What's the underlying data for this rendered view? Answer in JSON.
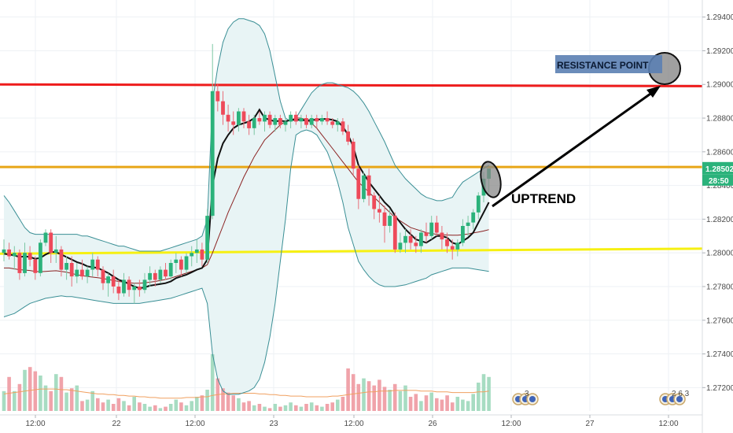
{
  "chart_data": {
    "type": "candlestick",
    "y_axis": {
      "ticks": [
        "1.29400",
        "1.29200",
        "1.29000",
        "1.28800",
        "1.28600",
        "1.28400",
        "1.28200",
        "1.28000",
        "1.27800",
        "1.27600",
        "1.27400",
        "1.27200"
      ],
      "range": [
        1.2708,
        1.2952
      ],
      "position": "right"
    },
    "x_axis": {
      "ticks": [
        "12:00",
        "22",
        "12:00",
        "23",
        "12:00",
        "26",
        "12:00",
        "27",
        "12:00"
      ]
    },
    "current_price": "1.28502",
    "countdown": "28:50",
    "horizontal_lines": [
      {
        "name": "resistance",
        "color": "#ee1c1c",
        "y": [
          1.29,
          1.2899
        ]
      },
      {
        "name": "current-level",
        "color": "#e8a617",
        "y": [
          1.2851,
          1.2851
        ]
      },
      {
        "name": "support",
        "color": "#f6f012",
        "y": [
          1.27995,
          1.28025
        ]
      }
    ],
    "annotations": {
      "resistance_label": "RESISTANCE POINT",
      "uptrend_label": "UPTREND"
    },
    "colors": {
      "up": "#7cc7a4",
      "down": "#e8707b",
      "band": "#3a8f95",
      "band_fill": "#e8f4f5",
      "sma": "#111111",
      "ma_slow": "#8b2323",
      "volume_ma": "#f0a060",
      "volume_up": "#a7dcc2",
      "volume_down": "#f0a3aa"
    },
    "candles": [
      [
        1.28,
        1.2808,
        1.2795,
        1.2802
      ],
      [
        1.2802,
        1.2806,
        1.2796,
        1.2798
      ],
      [
        1.2798,
        1.2804,
        1.279,
        1.28
      ],
      [
        1.28,
        1.2802,
        1.2784,
        1.2788
      ],
      [
        1.2788,
        1.2806,
        1.2786,
        1.28
      ],
      [
        1.28,
        1.2804,
        1.2792,
        1.2796
      ],
      [
        1.2796,
        1.2798,
        1.2784,
        1.2788
      ],
      [
        1.2788,
        1.2808,
        1.2786,
        1.2806
      ],
      [
        1.2806,
        1.2814,
        1.2804,
        1.2812
      ],
      [
        1.2812,
        1.2814,
        1.2794,
        1.28
      ],
      [
        1.28,
        1.281,
        1.2794,
        1.2802
      ],
      [
        1.2802,
        1.2804,
        1.2786,
        1.279
      ],
      [
        1.279,
        1.2798,
        1.2784,
        1.2794
      ],
      [
        1.2794,
        1.2798,
        1.278,
        1.2786
      ],
      [
        1.2786,
        1.2794,
        1.2782,
        1.279
      ],
      [
        1.279,
        1.2796,
        1.2784,
        1.2786
      ],
      [
        1.2786,
        1.2792,
        1.2782,
        1.279
      ],
      [
        1.279,
        1.28,
        1.2786,
        1.2796
      ],
      [
        1.2796,
        1.2798,
        1.2786,
        1.279
      ],
      [
        1.279,
        1.2792,
        1.2778,
        1.2782
      ],
      [
        1.2782,
        1.2788,
        1.2774,
        1.2786
      ],
      [
        1.2786,
        1.279,
        1.2776,
        1.278
      ],
      [
        1.278,
        1.2784,
        1.2772,
        1.2776
      ],
      [
        1.2776,
        1.2788,
        1.2774,
        1.2784
      ],
      [
        1.2784,
        1.2786,
        1.2774,
        1.2778
      ],
      [
        1.2778,
        1.2782,
        1.277,
        1.278
      ],
      [
        1.278,
        1.2784,
        1.2774,
        1.2778
      ],
      [
        1.2778,
        1.2788,
        1.2776,
        1.2784
      ],
      [
        1.2784,
        1.2792,
        1.278,
        1.2788
      ],
      [
        1.2788,
        1.279,
        1.278,
        1.2784
      ],
      [
        1.2784,
        1.2792,
        1.2782,
        1.279
      ],
      [
        1.279,
        1.2794,
        1.2784,
        1.2786
      ],
      [
        1.2786,
        1.2796,
        1.2784,
        1.2794
      ],
      [
        1.2794,
        1.28,
        1.2788,
        1.2796
      ],
      [
        1.2796,
        1.2798,
        1.2786,
        1.279
      ],
      [
        1.279,
        1.28,
        1.2788,
        1.2798
      ],
      [
        1.2798,
        1.2804,
        1.2792,
        1.28
      ],
      [
        1.28,
        1.2808,
        1.2794,
        1.2802
      ],
      [
        1.2802,
        1.2806,
        1.2792,
        1.2796
      ],
      [
        1.2796,
        1.2826,
        1.2794,
        1.2822
      ],
      [
        1.2822,
        1.2924,
        1.282,
        1.2896
      ],
      [
        1.2896,
        1.29,
        1.2884,
        1.289
      ],
      [
        1.289,
        1.2896,
        1.2876,
        1.2882
      ],
      [
        1.2882,
        1.2888,
        1.2872,
        1.2878
      ],
      [
        1.2878,
        1.2884,
        1.287,
        1.2876
      ],
      [
        1.2876,
        1.2886,
        1.2872,
        1.2884
      ],
      [
        1.2884,
        1.2886,
        1.2874,
        1.2878
      ],
      [
        1.2878,
        1.2882,
        1.287,
        1.2874
      ],
      [
        1.2874,
        1.2882,
        1.287,
        1.288
      ],
      [
        1.288,
        1.2884,
        1.2876,
        1.2878
      ],
      [
        1.2878,
        1.2884,
        1.2872,
        1.2882
      ],
      [
        1.2882,
        1.2884,
        1.2874,
        1.2876
      ],
      [
        1.2876,
        1.2882,
        1.2872,
        1.288
      ],
      [
        1.288,
        1.2882,
        1.2874,
        1.2876
      ],
      [
        1.2876,
        1.288,
        1.2872,
        1.2878
      ],
      [
        1.2878,
        1.2884,
        1.2874,
        1.2882
      ],
      [
        1.2882,
        1.2884,
        1.2876,
        1.2878
      ],
      [
        1.2878,
        1.2882,
        1.2874,
        1.288
      ],
      [
        1.288,
        1.2882,
        1.2874,
        1.2876
      ],
      [
        1.2876,
        1.2882,
        1.2874,
        1.288
      ],
      [
        1.288,
        1.2882,
        1.2874,
        1.2878
      ],
      [
        1.2878,
        1.2882,
        1.2876,
        1.288
      ],
      [
        1.288,
        1.2884,
        1.2876,
        1.2878
      ],
      [
        1.2878,
        1.288,
        1.2874,
        1.2876
      ],
      [
        1.2876,
        1.288,
        1.2872,
        1.2878
      ],
      [
        1.2878,
        1.288,
        1.287,
        1.2872
      ],
      [
        1.2872,
        1.2876,
        1.2864,
        1.2866
      ],
      [
        1.2866,
        1.2868,
        1.2846,
        1.285
      ],
      [
        1.285,
        1.2852,
        1.2826,
        1.2832
      ],
      [
        1.2832,
        1.2848,
        1.283,
        1.2846
      ],
      [
        1.2846,
        1.285,
        1.2828,
        1.2834
      ],
      [
        1.2834,
        1.2836,
        1.282,
        1.2826
      ],
      [
        1.2826,
        1.2834,
        1.2818,
        1.2824
      ],
      [
        1.2824,
        1.2828,
        1.2806,
        1.2816
      ],
      [
        1.2816,
        1.2826,
        1.2812,
        1.2822
      ],
      [
        1.2822,
        1.2824,
        1.28,
        1.2802
      ],
      [
        1.2802,
        1.2812,
        1.28,
        1.2806
      ],
      [
        1.2806,
        1.2814,
        1.28,
        1.281
      ],
      [
        1.281,
        1.2814,
        1.2802,
        1.2806
      ],
      [
        1.2806,
        1.281,
        1.28,
        1.2804
      ],
      [
        1.2804,
        1.2814,
        1.28,
        1.2812
      ],
      [
        1.2812,
        1.2818,
        1.2806,
        1.281
      ],
      [
        1.281,
        1.2822,
        1.2808,
        1.2818
      ],
      [
        1.2818,
        1.2822,
        1.281,
        1.2812
      ],
      [
        1.2812,
        1.2816,
        1.2802,
        1.2808
      ],
      [
        1.2808,
        1.2812,
        1.28,
        1.2804
      ],
      [
        1.2804,
        1.2808,
        1.2796,
        1.2802
      ],
      [
        1.2802,
        1.2808,
        1.2798,
        1.2806
      ],
      [
        1.2806,
        1.282,
        1.2804,
        1.2816
      ],
      [
        1.2816,
        1.2822,
        1.281,
        1.2818
      ],
      [
        1.2818,
        1.2826,
        1.2814,
        1.2824
      ],
      [
        1.2824,
        1.2836,
        1.282,
        1.2834
      ],
      [
        1.2834,
        1.2848,
        1.283,
        1.2844
      ],
      [
        1.2844,
        1.285,
        1.2836,
        1.285
      ]
    ],
    "sma": [
      1.27995,
      1.2799,
      1.27985,
      1.27975,
      1.2798,
      1.27975,
      1.27965,
      1.2797,
      1.2799,
      1.28005,
      1.28005,
      1.2799,
      1.27975,
      1.2796,
      1.27945,
      1.27935,
      1.2792,
      1.27915,
      1.2791,
      1.27895,
      1.2788,
      1.2786,
      1.2784,
      1.2783,
      1.27815,
      1.278,
      1.2779,
      1.27795,
      1.27805,
      1.2781,
      1.27815,
      1.2782,
      1.2783,
      1.2785,
      1.2786,
      1.2787,
      1.27885,
      1.279,
      1.2791,
      1.2796,
      1.284,
      1.2856,
      1.2865,
      1.287,
      1.2874,
      1.2876,
      1.2877,
      1.2878,
      1.288,
      1.2885,
      1.288,
      1.2879,
      1.2878,
      1.28785,
      1.2878,
      1.2879,
      1.2879,
      1.2879,
      1.28785,
      1.2879,
      1.2879,
      1.28795,
      1.28795,
      1.2879,
      1.2878,
      1.2875,
      1.287,
      1.2863,
      1.2852,
      1.2847,
      1.2842,
      1.2838,
      1.2834,
      1.283,
      1.2827,
      1.2822,
      1.2818,
      1.2814,
      1.2811,
      1.2808,
      1.2807,
      1.2806,
      1.2808,
      1.281,
      1.281,
      1.2809,
      1.2806,
      1.2805,
      1.2807,
      1.2809,
      1.2812,
      1.2818,
      1.2824,
      1.283
    ],
    "ma_slow": [
      1.2791,
      1.2791,
      1.27905,
      1.279,
      1.27898,
      1.27895,
      1.2789,
      1.27888,
      1.2789,
      1.27892,
      1.27894,
      1.2789,
      1.27885,
      1.27878,
      1.2787,
      1.27865,
      1.2786,
      1.27856,
      1.27852,
      1.27848,
      1.27842,
      1.27836,
      1.2783,
      1.27826,
      1.27822,
      1.2782,
      1.2782,
      1.27822,
      1.27826,
      1.2783,
      1.27836,
      1.27842,
      1.2785,
      1.2786,
      1.2787,
      1.2788,
      1.2789,
      1.279,
      1.2791,
      1.2793,
      1.28,
      1.2808,
      1.2816,
      1.2824,
      1.2831,
      1.2838,
      1.2845,
      1.2851,
      1.2857,
      1.2862,
      1.2867,
      1.287,
      1.2873,
      1.2876,
      1.2878,
      1.2879,
      1.288,
      1.288,
      1.2879,
      1.2877,
      1.2874,
      1.287,
      1.2866,
      1.2862,
      1.2858,
      1.2854,
      1.285,
      1.2846,
      1.2842,
      1.2839,
      1.2836,
      1.2833,
      1.283,
      1.2827,
      1.2824,
      1.2821,
      1.2819,
      1.2817,
      1.2815,
      1.2814,
      1.2813,
      1.2812,
      1.28115,
      1.2811,
      1.28108,
      1.28106,
      1.28105,
      1.28105,
      1.28108,
      1.28112,
      1.28118,
      1.28124,
      1.2813,
      1.28138
    ],
    "bb_upper": [
      1.2834,
      1.283,
      1.2825,
      1.282,
      1.2815,
      1.2812,
      1.2811,
      1.2811,
      1.2811,
      1.2811,
      1.2811,
      1.2811,
      1.2811,
      1.2811,
      1.2811,
      1.281,
      1.281,
      1.2809,
      1.2808,
      1.2807,
      1.2806,
      1.2805,
      1.2804,
      1.2804,
      1.2803,
      1.2802,
      1.2801,
      1.2801,
      1.2801,
      1.2801,
      1.2801,
      1.2802,
      1.2803,
      1.2804,
      1.2805,
      1.2806,
      1.2807,
      1.2808,
      1.281,
      1.282,
      1.289,
      1.291,
      1.2925,
      1.2933,
      1.2937,
      1.2939,
      1.2939,
      1.2938,
      1.2937,
      1.2935,
      1.293,
      1.292,
      1.2905,
      1.289,
      1.288,
      1.2878,
      1.288,
      1.2885,
      1.289,
      1.2895,
      1.2898,
      1.29,
      1.2901,
      1.2901,
      1.29,
      1.2899,
      1.2898,
      1.2896,
      1.2893,
      1.2889,
      1.2884,
      1.2878,
      1.2872,
      1.2866,
      1.2859,
      1.2852,
      1.2848,
      1.2844,
      1.2841,
      1.2838,
      1.2835,
      1.2833,
      1.2832,
      1.2831,
      1.2831,
      1.2832,
      1.2833,
      1.2838,
      1.2842,
      1.2844,
      1.2846,
      1.2848,
      1.285,
      1.2852
    ],
    "bb_lower": [
      1.2762,
      1.2763,
      1.2764,
      1.2766,
      1.2768,
      1.277,
      1.2771,
      1.2772,
      1.2773,
      1.27735,
      1.2774,
      1.27745,
      1.2774,
      1.2774,
      1.27735,
      1.2773,
      1.27725,
      1.2772,
      1.27715,
      1.2771,
      1.27705,
      1.277,
      1.277,
      1.277,
      1.277,
      1.277,
      1.277,
      1.27705,
      1.2771,
      1.27715,
      1.2772,
      1.27725,
      1.2773,
      1.2774,
      1.2775,
      1.2776,
      1.2777,
      1.2778,
      1.2779,
      1.277,
      1.274,
      1.2725,
      1.2718,
      1.2716,
      1.2716,
      1.2716,
      1.2717,
      1.2718,
      1.272,
      1.2725,
      1.2735,
      1.275,
      1.277,
      1.2795,
      1.282,
      1.285,
      1.287,
      1.2872,
      1.2873,
      1.2872,
      1.287,
      1.2865,
      1.286,
      1.2852,
      1.2842,
      1.283,
      1.2815,
      1.2805,
      1.2795,
      1.279,
      1.2786,
      1.2783,
      1.2781,
      1.278,
      1.278,
      1.278,
      1.27805,
      1.2781,
      1.2782,
      1.2783,
      1.2784,
      1.2785,
      1.2787,
      1.2788,
      1.2789,
      1.279,
      1.2791,
      1.2791,
      1.2791,
      1.2791,
      1.27905,
      1.279,
      1.27895,
      1.2789
    ],
    "volume": [
      0.28,
      0.48,
      0.28,
      0.38,
      0.58,
      0.62,
      0.56,
      0.5,
      0.36,
      0.28,
      0.52,
      0.48,
      0.26,
      0.32,
      0.36,
      0.14,
      0.16,
      0.28,
      0.18,
      0.12,
      0.16,
      0.1,
      0.18,
      0.14,
      0.08,
      0.2,
      0.12,
      0.1,
      0.06,
      0.08,
      0.04,
      0.06,
      0.1,
      0.16,
      0.12,
      0.08,
      0.14,
      0.2,
      0.22,
      0.3,
      0.8,
      0.46,
      0.32,
      0.26,
      0.22,
      0.18,
      0.12,
      0.14,
      0.08,
      0.1,
      0.06,
      0.04,
      0.1,
      0.06,
      0.08,
      0.12,
      0.08,
      0.06,
      0.1,
      0.12,
      0.08,
      0.06,
      0.1,
      0.12,
      0.16,
      0.2,
      0.6,
      0.52,
      0.38,
      0.46,
      0.42,
      0.36,
      0.44,
      0.34,
      0.3,
      0.38,
      0.28,
      0.36,
      0.2,
      0.24,
      0.14,
      0.22,
      0.26,
      0.18,
      0.16,
      0.22,
      0.12,
      0.2,
      0.16,
      0.14,
      0.24,
      0.4,
      0.52,
      0.48
    ],
    "volume_ma": [
      0.24,
      0.25,
      0.26,
      0.27,
      0.28,
      0.29,
      0.3,
      0.31,
      0.31,
      0.31,
      0.31,
      0.3,
      0.3,
      0.29,
      0.28,
      0.27,
      0.26,
      0.25,
      0.24,
      0.24,
      0.23,
      0.23,
      0.22,
      0.22,
      0.21,
      0.21,
      0.2,
      0.2,
      0.19,
      0.19,
      0.18,
      0.18,
      0.18,
      0.18,
      0.18,
      0.19,
      0.19,
      0.19,
      0.2,
      0.2,
      0.22,
      0.23,
      0.24,
      0.24,
      0.25,
      0.25,
      0.25,
      0.25,
      0.25,
      0.24,
      0.24,
      0.23,
      0.23,
      0.22,
      0.22,
      0.21,
      0.21,
      0.21,
      0.2,
      0.2,
      0.2,
      0.2,
      0.2,
      0.21,
      0.21,
      0.22,
      0.23,
      0.24,
      0.25,
      0.26,
      0.27,
      0.27,
      0.28,
      0.28,
      0.28,
      0.29,
      0.29,
      0.29,
      0.29,
      0.29,
      0.28,
      0.28,
      0.28,
      0.27,
      0.27,
      0.27,
      0.26,
      0.26,
      0.26,
      0.26,
      0.26,
      0.27,
      0.27,
      0.28
    ],
    "event_badges": [
      {
        "date_label": "",
        "count_label": "3",
        "x": "26 11:30"
      },
      {
        "date_label": "",
        "count_label": "2 6 3",
        "x": "27 12:00"
      }
    ]
  }
}
